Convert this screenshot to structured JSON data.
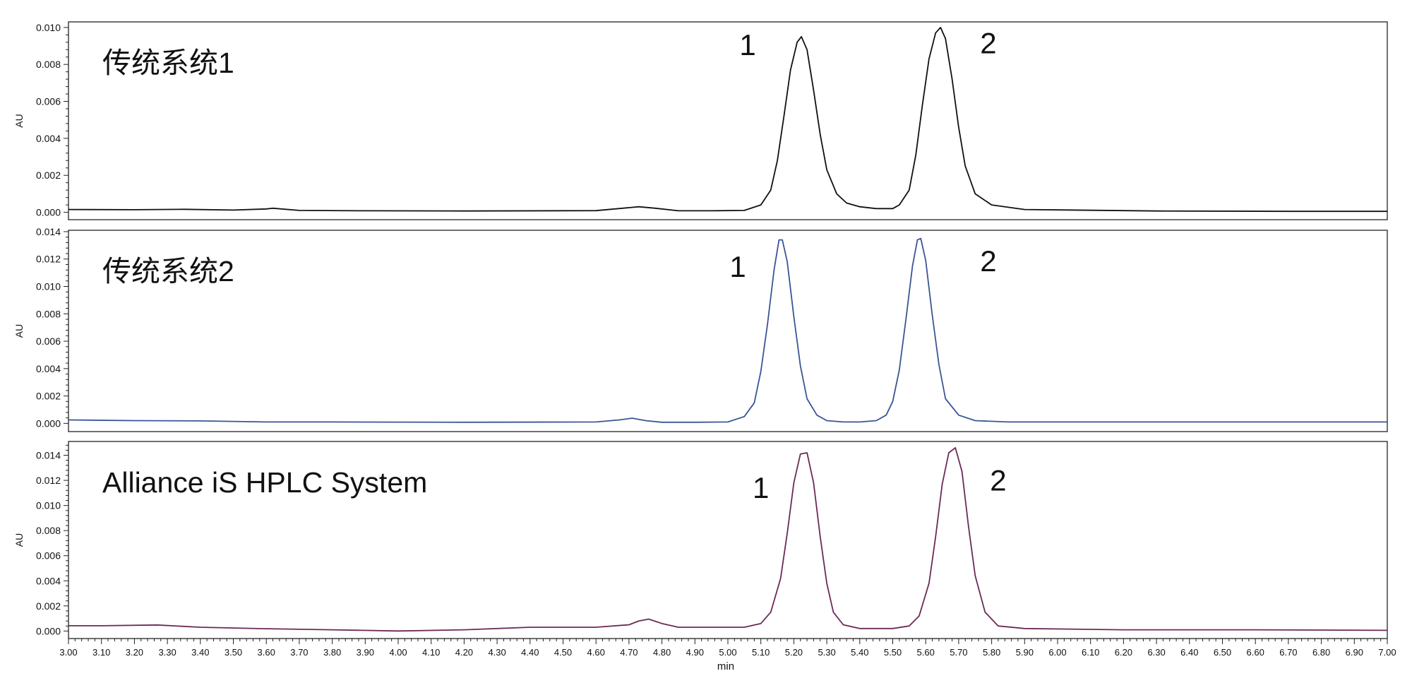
{
  "chart_data": [
    {
      "type": "line",
      "title": "传统系统1",
      "ylabel": "AU",
      "xlabel": "",
      "xlim": [
        3.0,
        7.0
      ],
      "ylim": [
        -0.0004,
        0.0103
      ],
      "yticks": [
        "0.000",
        "0.002",
        "0.004",
        "0.006",
        "0.008",
        "0.010"
      ],
      "line_color": "#111111",
      "peak_labels": [
        {
          "text": "1",
          "x": 5.06,
          "y": 0.0085
        },
        {
          "text": "2",
          "x": 5.79,
          "y": 0.0086
        }
      ],
      "series": [
        {
          "x": [
            3.0,
            3.2,
            3.35,
            3.5,
            3.6,
            3.62,
            3.7,
            3.9,
            4.2,
            4.6,
            4.7,
            4.73,
            4.78,
            4.85,
            4.95,
            5.05,
            5.1,
            5.13,
            5.15,
            5.17,
            5.19,
            5.21,
            5.223,
            5.24,
            5.26,
            5.28,
            5.3,
            5.33,
            5.36,
            5.4,
            5.45,
            5.5,
            5.52,
            5.55,
            5.57,
            5.59,
            5.61,
            5.63,
            5.645,
            5.66,
            5.68,
            5.7,
            5.72,
            5.75,
            5.8,
            5.9,
            6.3,
            6.7,
            7.0
          ],
          "y": [
            0.00015,
            0.00014,
            0.00016,
            0.00012,
            0.00018,
            0.00022,
            0.0001,
            8e-05,
            7e-05,
            9e-05,
            0.00025,
            0.0003,
            0.00022,
            8e-05,
            8e-05,
            0.0001,
            0.0004,
            0.0012,
            0.0028,
            0.0052,
            0.0077,
            0.0092,
            0.0095,
            0.0088,
            0.0066,
            0.0042,
            0.0023,
            0.001,
            0.0005,
            0.0003,
            0.0002,
            0.0002,
            0.0004,
            0.0012,
            0.0031,
            0.0058,
            0.0083,
            0.0097,
            0.01,
            0.0094,
            0.0072,
            0.0046,
            0.0025,
            0.001,
            0.0004,
            0.00015,
            7e-05,
            5e-05,
            5e-05
          ]
        }
      ]
    },
    {
      "type": "line",
      "title": "传统系统2",
      "ylabel": "AU",
      "xlabel": "",
      "xlim": [
        3.0,
        7.0
      ],
      "ylim": [
        -0.0006,
        0.0141
      ],
      "yticks": [
        "0.000",
        "0.002",
        "0.004",
        "0.006",
        "0.008",
        "0.010",
        "0.012",
        "0.014"
      ],
      "line_color": "#3a5594",
      "peak_labels": [
        {
          "text": "1",
          "x": 5.03,
          "y": 0.0107
        },
        {
          "text": "2",
          "x": 5.79,
          "y": 0.0111
        }
      ],
      "series": [
        {
          "x": [
            3.0,
            3.2,
            3.4,
            3.6,
            3.8,
            4.2,
            4.6,
            4.67,
            4.71,
            4.75,
            4.8,
            4.9,
            5.0,
            5.05,
            5.08,
            5.1,
            5.12,
            5.14,
            5.155,
            5.165,
            5.18,
            5.2,
            5.22,
            5.24,
            5.27,
            5.3,
            5.35,
            5.4,
            5.45,
            5.48,
            5.5,
            5.52,
            5.54,
            5.56,
            5.575,
            5.585,
            5.6,
            5.62,
            5.64,
            5.66,
            5.7,
            5.75,
            5.85,
            6.2,
            6.6,
            7.0
          ],
          "y": [
            0.00025,
            0.0002,
            0.00018,
            0.0001,
            0.0001,
            8e-05,
            0.0001,
            0.00025,
            0.00038,
            0.0002,
            8e-05,
            8e-05,
            0.0001,
            0.0005,
            0.0015,
            0.0038,
            0.0072,
            0.0112,
            0.0134,
            0.0134,
            0.0118,
            0.0078,
            0.0042,
            0.0018,
            0.0006,
            0.0002,
            0.0001,
            0.0001,
            0.0002,
            0.0006,
            0.0016,
            0.0039,
            0.0076,
            0.0115,
            0.0134,
            0.0135,
            0.0119,
            0.0079,
            0.0043,
            0.0018,
            0.0006,
            0.0002,
            0.0001,
            0.0001,
            0.0001,
            0.0001
          ]
        }
      ]
    },
    {
      "type": "line",
      "title": "Alliance iS HPLC System",
      "ylabel": "AU",
      "xlabel": "min",
      "xlim": [
        3.0,
        7.0
      ],
      "ylim": [
        -0.0006,
        0.0151
      ],
      "yticks": [
        "0.000",
        "0.002",
        "0.004",
        "0.006",
        "0.008",
        "0.010",
        "0.012",
        "0.014"
      ],
      "xticks": [
        "3.00",
        "3.10",
        "3.20",
        "3.30",
        "3.40",
        "3.50",
        "3.60",
        "3.70",
        "3.80",
        "3.90",
        "4.00",
        "4.10",
        "4.20",
        "4.30",
        "4.40",
        "4.50",
        "4.60",
        "4.70",
        "4.80",
        "4.90",
        "5.00",
        "5.10",
        "5.20",
        "5.30",
        "5.40",
        "5.50",
        "5.60",
        "5.70",
        "5.80",
        "5.90",
        "6.00",
        "6.10",
        "6.20",
        "6.30",
        "6.40",
        "6.50",
        "6.60",
        "6.70",
        "6.80",
        "6.90",
        "7.00"
      ],
      "line_color": "#6b2a55",
      "peak_labels": [
        {
          "text": "1",
          "x": 5.1,
          "y": 0.0106
        },
        {
          "text": "2",
          "x": 5.82,
          "y": 0.0112
        }
      ],
      "series": [
        {
          "x": [
            3.0,
            3.1,
            3.27,
            3.4,
            3.6,
            3.8,
            4.0,
            4.2,
            4.4,
            4.6,
            4.7,
            4.73,
            4.76,
            4.8,
            4.85,
            4.95,
            5.05,
            5.1,
            5.13,
            5.16,
            5.18,
            5.2,
            5.22,
            5.24,
            5.26,
            5.28,
            5.3,
            5.32,
            5.35,
            5.4,
            5.5,
            5.55,
            5.58,
            5.61,
            5.63,
            5.65,
            5.67,
            5.69,
            5.71,
            5.73,
            5.75,
            5.78,
            5.82,
            5.9,
            6.2,
            6.6,
            7.0
          ],
          "y": [
            0.00042,
            0.00042,
            0.00048,
            0.0003,
            0.00018,
            0.0001,
            0.0,
            0.0001,
            0.0003,
            0.0003,
            0.0005,
            0.0008,
            0.00095,
            0.0006,
            0.0003,
            0.0003,
            0.0003,
            0.0006,
            0.0015,
            0.0042,
            0.0078,
            0.0118,
            0.0141,
            0.0142,
            0.0118,
            0.0075,
            0.0038,
            0.0015,
            0.0005,
            0.0002,
            0.0002,
            0.0004,
            0.0012,
            0.0038,
            0.0075,
            0.0117,
            0.0142,
            0.0146,
            0.0127,
            0.0083,
            0.0044,
            0.0015,
            0.0004,
            0.0002,
            0.0001,
            0.0001,
            5e-05
          ]
        }
      ]
    }
  ]
}
